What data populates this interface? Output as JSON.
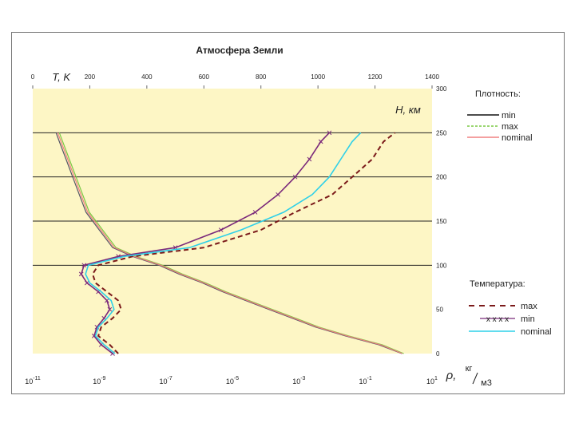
{
  "chart_data": {
    "type": "line",
    "title": "Атмосфера Земли",
    "top_axis": {
      "label": "T, K",
      "ticks": [
        0,
        200,
        400,
        600,
        800,
        1000,
        1200,
        1400
      ],
      "range": [
        0,
        1400
      ]
    },
    "bottom_axis": {
      "label_rho": "ρ,",
      "label_unit_num": "кг",
      "label_unit_den": "м3",
      "ticks": [
        {
          "base": "10",
          "exp": "-11",
          "log": -11
        },
        {
          "base": "10",
          "exp": "-9",
          "log": -9
        },
        {
          "base": "10",
          "exp": "-7",
          "log": -7
        },
        {
          "base": "10",
          "exp": "-5",
          "log": -5
        },
        {
          "base": "10",
          "exp": "-3",
          "log": -3
        },
        {
          "base": "10",
          "exp": "-1",
          "log": -1
        },
        {
          "base": "10",
          "exp": "1",
          "log": 1
        }
      ],
      "range_log": [
        -11,
        1
      ]
    },
    "y_axis": {
      "label": "H, км",
      "ticks": [
        0,
        50,
        100,
        150,
        200,
        250,
        300
      ],
      "range": [
        0,
        300
      ],
      "gridlines": [
        100,
        150,
        200,
        250
      ]
    },
    "legend_density": {
      "title": "Плотность:",
      "entries": [
        {
          "name": "min",
          "color": "#111111",
          "dash": "solid"
        },
        {
          "name": "max",
          "color": "#7ac943",
          "dash": "dashed"
        },
        {
          "name": "nominal",
          "color": "#f08080",
          "dash": "solid"
        }
      ]
    },
    "legend_temperature": {
      "title": "Температура:",
      "entries": [
        {
          "name": "max",
          "marker": "- - -",
          "color": "#7b1a1a",
          "dash": "dashed"
        },
        {
          "name": "min",
          "marker": "x x x x",
          "color": "#7b2a7b",
          "dash": "cross"
        },
        {
          "name": "nominal",
          "marker": "",
          "color": "#2fd0e8",
          "dash": "solid"
        }
      ]
    },
    "temperature_series": [
      {
        "name": "max",
        "color": "#7b1a1a",
        "points": [
          [
            300,
            0
          ],
          [
            270,
            10
          ],
          [
            230,
            20
          ],
          [
            240,
            30
          ],
          [
            280,
            40
          ],
          [
            310,
            50
          ],
          [
            300,
            60
          ],
          [
            260,
            70
          ],
          [
            220,
            80
          ],
          [
            210,
            90
          ],
          [
            230,
            100
          ],
          [
            350,
            110
          ],
          [
            600,
            120
          ],
          [
            800,
            140
          ],
          [
            920,
            160
          ],
          [
            1050,
            180
          ],
          [
            1120,
            200
          ],
          [
            1190,
            220
          ],
          [
            1230,
            240
          ],
          [
            1270,
            250
          ]
        ]
      },
      {
        "name": "min",
        "color": "#7b2a7b",
        "points": [
          [
            280,
            0
          ],
          [
            240,
            10
          ],
          [
            215,
            20
          ],
          [
            225,
            30
          ],
          [
            250,
            40
          ],
          [
            270,
            50
          ],
          [
            260,
            60
          ],
          [
            230,
            70
          ],
          [
            190,
            80
          ],
          [
            170,
            90
          ],
          [
            180,
            100
          ],
          [
            300,
            110
          ],
          [
            500,
            120
          ],
          [
            660,
            140
          ],
          [
            780,
            160
          ],
          [
            860,
            180
          ],
          [
            920,
            200
          ],
          [
            970,
            220
          ],
          [
            1010,
            240
          ],
          [
            1040,
            250
          ]
        ]
      },
      {
        "name": "nominal",
        "color": "#2fd0e8",
        "points": [
          [
            288,
            0
          ],
          [
            250,
            10
          ],
          [
            220,
            20
          ],
          [
            230,
            30
          ],
          [
            260,
            40
          ],
          [
            285,
            50
          ],
          [
            275,
            60
          ],
          [
            240,
            70
          ],
          [
            200,
            80
          ],
          [
            185,
            90
          ],
          [
            195,
            100
          ],
          [
            320,
            110
          ],
          [
            550,
            120
          ],
          [
            730,
            140
          ],
          [
            880,
            160
          ],
          [
            980,
            180
          ],
          [
            1040,
            200
          ],
          [
            1080,
            220
          ],
          [
            1120,
            240
          ],
          [
            1150,
            250
          ]
        ]
      }
    ],
    "density_series": [
      {
        "name": "min",
        "color": "#555566",
        "points": [
          [
            0.09,
            0
          ],
          [
            -0.6,
            10
          ],
          [
            -1.6,
            20
          ],
          [
            -2.5,
            30
          ],
          [
            -3.2,
            40
          ],
          [
            -3.9,
            50
          ],
          [
            -4.6,
            60
          ],
          [
            -5.3,
            70
          ],
          [
            -5.9,
            80
          ],
          [
            -6.6,
            90
          ],
          [
            -7.2,
            100
          ],
          [
            -8.0,
            110
          ],
          [
            -8.6,
            120
          ],
          [
            -9.0,
            140
          ],
          [
            -9.4,
            160
          ],
          [
            -9.6,
            180
          ],
          [
            -9.8,
            200
          ],
          [
            -10.0,
            220
          ],
          [
            -10.2,
            240
          ],
          [
            -10.3,
            250
          ]
        ]
      },
      {
        "name": "max",
        "color": "#7ac943",
        "points": [
          [
            0.15,
            0
          ],
          [
            -0.5,
            10
          ],
          [
            -1.5,
            20
          ],
          [
            -2.4,
            30
          ],
          [
            -3.1,
            40
          ],
          [
            -3.8,
            50
          ],
          [
            -4.5,
            60
          ],
          [
            -5.2,
            70
          ],
          [
            -5.8,
            80
          ],
          [
            -6.5,
            90
          ],
          [
            -7.1,
            100
          ],
          [
            -7.9,
            110
          ],
          [
            -8.5,
            120
          ],
          [
            -8.9,
            140
          ],
          [
            -9.3,
            160
          ],
          [
            -9.5,
            180
          ],
          [
            -9.7,
            200
          ],
          [
            -9.9,
            220
          ],
          [
            -10.1,
            240
          ],
          [
            -10.2,
            250
          ]
        ]
      },
      {
        "name": "nominal",
        "color": "#f08080",
        "points": [
          [
            0.11,
            0
          ],
          [
            -0.55,
            10
          ],
          [
            -1.55,
            20
          ],
          [
            -2.45,
            30
          ],
          [
            -3.15,
            40
          ],
          [
            -3.85,
            50
          ],
          [
            -4.55,
            60
          ],
          [
            -5.25,
            70
          ],
          [
            -5.85,
            80
          ],
          [
            -6.55,
            90
          ],
          [
            -7.15,
            100
          ],
          [
            -7.95,
            110
          ],
          [
            -8.55,
            120
          ],
          [
            -8.95,
            140
          ],
          [
            -9.35,
            160
          ],
          [
            -9.55,
            180
          ],
          [
            -9.75,
            200
          ],
          [
            -9.95,
            220
          ],
          [
            -10.15,
            240
          ],
          [
            -10.25,
            250
          ]
        ]
      }
    ]
  }
}
